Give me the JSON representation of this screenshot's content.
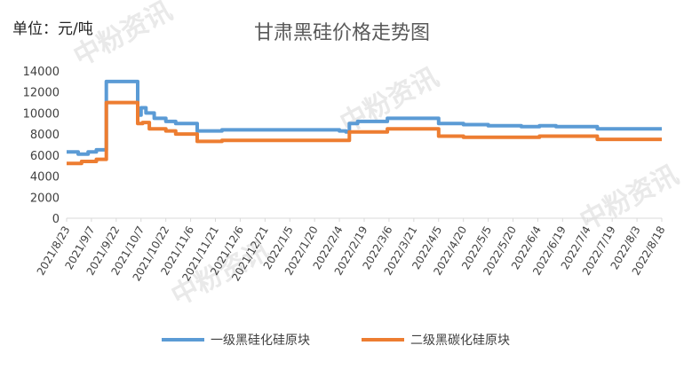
{
  "unit_label": "单位：元/吨",
  "watermark": "中粉资讯",
  "chart_data": {
    "type": "line",
    "title": "甘肃黑硅价格走势图",
    "xlabel": "",
    "ylabel": "",
    "ylim": [
      0,
      14000
    ],
    "yticks": [
      14000,
      12000,
      10000,
      8000,
      6000,
      4000,
      2000,
      0
    ],
    "xticks": [
      "2021/8/23",
      "2021/9/7",
      "2021/9/22",
      "2021/10/7",
      "2021/10/22",
      "2021/11/6",
      "2021/11/21",
      "2021/12/6",
      "2021/12/21",
      "2022/1/5",
      "2022/1/20",
      "2022/2/4",
      "2022/2/19",
      "2022/3/6",
      "2022/3/21",
      "2022/4/5",
      "2022/4/20",
      "2022/5/5",
      "2022/5/20",
      "2022/6/4",
      "2022/6/19",
      "2022/7/4",
      "2022/7/19",
      "2022/8/3",
      "2022/8/18"
    ],
    "x_start": "2021-08-23",
    "x_end": "2022-08-18",
    "grid": false,
    "legend_position": "bottom",
    "series": [
      {
        "name": "一级黑硅化硅原块",
        "color": "#5B9BD5",
        "points": [
          [
            "2021-08-23",
            6300
          ],
          [
            "2021-08-30",
            6100
          ],
          [
            "2021-09-05",
            6300
          ],
          [
            "2021-09-10",
            6500
          ],
          [
            "2021-09-16",
            13000
          ],
          [
            "2021-10-05",
            9800
          ],
          [
            "2021-10-07",
            10500
          ],
          [
            "2021-10-10",
            10000
          ],
          [
            "2021-10-15",
            9500
          ],
          [
            "2021-10-22",
            9200
          ],
          [
            "2021-10-28",
            9000
          ],
          [
            "2021-11-10",
            8300
          ],
          [
            "2021-11-25",
            8400
          ],
          [
            "2022-02-04",
            8300
          ],
          [
            "2022-02-08",
            8200
          ],
          [
            "2022-02-10",
            9000
          ],
          [
            "2022-02-15",
            9200
          ],
          [
            "2022-03-05",
            9500
          ],
          [
            "2022-04-05",
            9000
          ],
          [
            "2022-04-20",
            8900
          ],
          [
            "2022-05-05",
            8800
          ],
          [
            "2022-05-25",
            8700
          ],
          [
            "2022-06-05",
            8800
          ],
          [
            "2022-06-15",
            8700
          ],
          [
            "2022-07-10",
            8500
          ],
          [
            "2022-08-18",
            8500
          ]
        ]
      },
      {
        "name": "二级黑碳化硅原块",
        "color": "#ED7D31",
        "points": [
          [
            "2021-08-23",
            5200
          ],
          [
            "2021-09-01",
            5400
          ],
          [
            "2021-09-10",
            5600
          ],
          [
            "2021-09-16",
            11000
          ],
          [
            "2021-10-05",
            9000
          ],
          [
            "2021-10-08",
            9100
          ],
          [
            "2021-10-12",
            8500
          ],
          [
            "2021-10-22",
            8300
          ],
          [
            "2021-10-28",
            8000
          ],
          [
            "2021-11-10",
            7300
          ],
          [
            "2021-11-25",
            7400
          ],
          [
            "2022-02-10",
            8200
          ],
          [
            "2022-03-05",
            8500
          ],
          [
            "2022-04-05",
            7800
          ],
          [
            "2022-04-20",
            7700
          ],
          [
            "2022-06-05",
            7800
          ],
          [
            "2022-07-10",
            7500
          ],
          [
            "2022-08-18",
            7500
          ]
        ]
      }
    ]
  }
}
